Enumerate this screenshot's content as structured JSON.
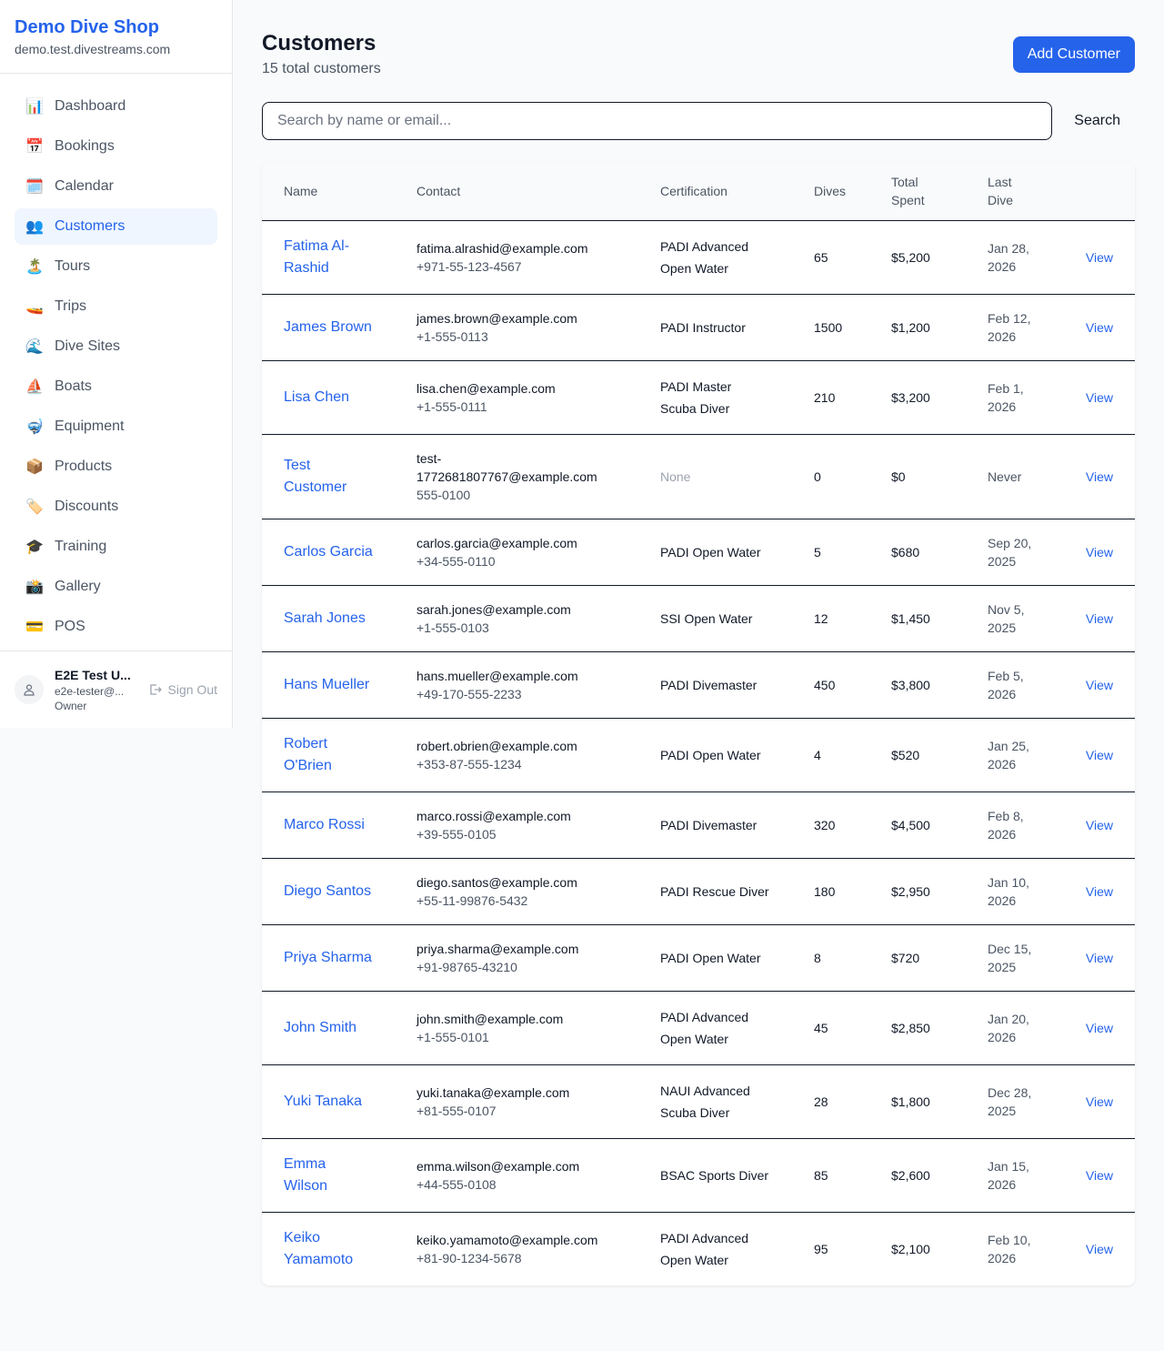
{
  "sidebar": {
    "brand": "Demo Dive Shop",
    "domain": "demo.test.divestreams.com",
    "items": [
      {
        "label": "Dashboard",
        "icon": "📊",
        "icon_name": "bar-chart-icon"
      },
      {
        "label": "Bookings",
        "icon": "📅",
        "icon_name": "calendar-date-icon"
      },
      {
        "label": "Calendar",
        "icon": "🗓️",
        "icon_name": "calendar-icon"
      },
      {
        "label": "Customers",
        "icon": "👥",
        "icon_name": "users-icon",
        "active": true
      },
      {
        "label": "Tours",
        "icon": "🏝️",
        "icon_name": "island-icon"
      },
      {
        "label": "Trips",
        "icon": "🚤",
        "icon_name": "speedboat-icon"
      },
      {
        "label": "Dive Sites",
        "icon": "🌊",
        "icon_name": "wave-icon"
      },
      {
        "label": "Boats",
        "icon": "⛵",
        "icon_name": "sailboat-icon"
      },
      {
        "label": "Equipment",
        "icon": "🤿",
        "icon_name": "diving-mask-icon"
      },
      {
        "label": "Products",
        "icon": "📦",
        "icon_name": "package-icon"
      },
      {
        "label": "Discounts",
        "icon": "🏷️",
        "icon_name": "tag-icon"
      },
      {
        "label": "Training",
        "icon": "🎓",
        "icon_name": "graduation-cap-icon"
      },
      {
        "label": "Gallery",
        "icon": "📸",
        "icon_name": "camera-icon"
      },
      {
        "label": "POS",
        "icon": "💳",
        "icon_name": "credit-card-icon"
      }
    ],
    "user": {
      "name": "E2E Test U...",
      "email": "e2e-tester@...",
      "role": "Owner",
      "sign_out": "Sign Out"
    }
  },
  "header": {
    "title": "Customers",
    "subtitle": "15 total customers",
    "add_button": "Add Customer"
  },
  "search": {
    "placeholder": "Search by name or email...",
    "value": "",
    "button": "Search"
  },
  "table": {
    "columns": [
      "Name",
      "Contact",
      "Certification",
      "Dives",
      "Total Spent",
      "Last Dive",
      ""
    ],
    "view_label": "View",
    "rows": [
      {
        "name": "Fatima Al-Rashid",
        "email": "fatima.alrashid@example.com",
        "phone": "+971-55-123-4567",
        "cert": "PADI Advanced Open Water",
        "dives": "65",
        "spent": "$5,200",
        "last": "Jan 28, 2026"
      },
      {
        "name": "James Brown",
        "email": "james.brown@example.com",
        "phone": "+1-555-0113",
        "cert": "PADI Instructor",
        "dives": "1500",
        "spent": "$1,200",
        "last": "Feb 12, 2026"
      },
      {
        "name": "Lisa Chen",
        "email": "lisa.chen@example.com",
        "phone": "+1-555-0111",
        "cert": "PADI Master Scuba Diver",
        "dives": "210",
        "spent": "$3,200",
        "last": "Feb 1, 2026"
      },
      {
        "name": "Test Customer",
        "email": "test-1772681807767@example.com",
        "phone": "555-0100",
        "cert": "None",
        "dives": "0",
        "spent": "$0",
        "last": "Never"
      },
      {
        "name": "Carlos Garcia",
        "email": "carlos.garcia@example.com",
        "phone": "+34-555-0110",
        "cert": "PADI Open Water",
        "dives": "5",
        "spent": "$680",
        "last": "Sep 20, 2025"
      },
      {
        "name": "Sarah Jones",
        "email": "sarah.jones@example.com",
        "phone": "+1-555-0103",
        "cert": "SSI Open Water",
        "dives": "12",
        "spent": "$1,450",
        "last": "Nov 5, 2025"
      },
      {
        "name": "Hans Mueller",
        "email": "hans.mueller@example.com",
        "phone": "+49-170-555-2233",
        "cert": "PADI Divemaster",
        "dives": "450",
        "spent": "$3,800",
        "last": "Feb 5, 2026"
      },
      {
        "name": "Robert O'Brien",
        "email": "robert.obrien@example.com",
        "phone": "+353-87-555-1234",
        "cert": "PADI Open Water",
        "dives": "4",
        "spent": "$520",
        "last": "Jan 25, 2026"
      },
      {
        "name": "Marco Rossi",
        "email": "marco.rossi@example.com",
        "phone": "+39-555-0105",
        "cert": "PADI Divemaster",
        "dives": "320",
        "spent": "$4,500",
        "last": "Feb 8, 2026"
      },
      {
        "name": "Diego Santos",
        "email": "diego.santos@example.com",
        "phone": "+55-11-99876-5432",
        "cert": "PADI Rescue Diver",
        "dives": "180",
        "spent": "$2,950",
        "last": "Jan 10, 2026"
      },
      {
        "name": "Priya Sharma",
        "email": "priya.sharma@example.com",
        "phone": "+91-98765-43210",
        "cert": "PADI Open Water",
        "dives": "8",
        "spent": "$720",
        "last": "Dec 15, 2025"
      },
      {
        "name": "John Smith",
        "email": "john.smith@example.com",
        "phone": "+1-555-0101",
        "cert": "PADI Advanced Open Water",
        "dives": "45",
        "spent": "$2,850",
        "last": "Jan 20, 2026"
      },
      {
        "name": "Yuki Tanaka",
        "email": "yuki.tanaka@example.com",
        "phone": "+81-555-0107",
        "cert": "NAUI Advanced Scuba Diver",
        "dives": "28",
        "spent": "$1,800",
        "last": "Dec 28, 2025"
      },
      {
        "name": "Emma Wilson",
        "email": "emma.wilson@example.com",
        "phone": "+44-555-0108",
        "cert": "BSAC Sports Diver",
        "dives": "85",
        "spent": "$2,600",
        "last": "Jan 15, 2026"
      },
      {
        "name": "Keiko Yamamoto",
        "email": "keiko.yamamoto@example.com",
        "phone": "+81-90-1234-5678",
        "cert": "PADI Advanced Open Water",
        "dives": "95",
        "spent": "$2,100",
        "last": "Feb 10, 2026"
      }
    ]
  }
}
